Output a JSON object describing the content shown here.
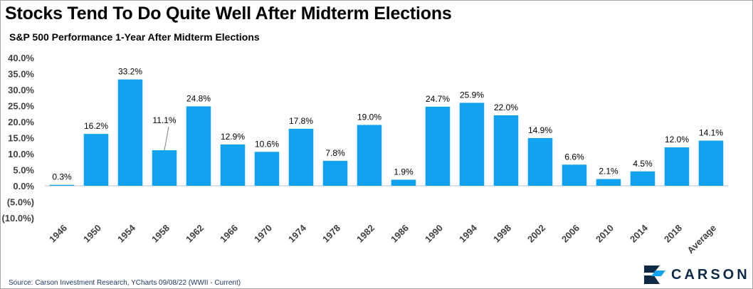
{
  "header": {
    "title": "Stocks Tend To Do Quite Well After Midterm Elections",
    "subtitle": "S&P 500 Performance 1-Year After Midterm Elections"
  },
  "footer": {
    "source": "Source: Carson Investment Research, YCharts 09/08/22 (WWII - Current)",
    "logo_text": "CARSON"
  },
  "chart_data": {
    "type": "bar",
    "title": "Stocks Tend To Do Quite Well After Midterm Elections",
    "subtitle": "S&P 500 Performance 1-Year After Midterm Elections",
    "categories": [
      "1946",
      "1950",
      "1954",
      "1958",
      "1962",
      "1966",
      "1970",
      "1974",
      "1978",
      "1982",
      "1986",
      "1990",
      "1994",
      "1998",
      "2002",
      "2006",
      "2010",
      "2014",
      "2018",
      "Average"
    ],
    "values": [
      0.3,
      16.2,
      33.2,
      11.1,
      24.8,
      12.9,
      10.6,
      17.8,
      7.8,
      19.0,
      1.9,
      24.7,
      25.9,
      22.0,
      14.9,
      6.6,
      2.1,
      4.5,
      12.0,
      14.1
    ],
    "data_labels": [
      "0.3%",
      "16.2%",
      "33.2%",
      "11.1%",
      "24.8%",
      "12.9%",
      "10.6%",
      "17.8%",
      "7.8%",
      "19.0%",
      "1.9%",
      "24.7%",
      "25.9%",
      "22.0%",
      "14.9%",
      "6.6%",
      "2.1%",
      "4.5%",
      "12.0%",
      "14.1%"
    ],
    "y_ticks": [
      40,
      35,
      30,
      25,
      20,
      15,
      10,
      5,
      0,
      -5,
      -10
    ],
    "y_tick_labels": [
      "40.0%",
      "35.0%",
      "30.0%",
      "25.0%",
      "20.0%",
      "15.0%",
      "10.0%",
      "5.0%",
      "0.0%",
      "(5.0%)",
      "(10.0%)"
    ],
    "ylim": [
      -10,
      40
    ],
    "unit": "%",
    "grid": false,
    "legend": "none",
    "bar_color": "#12a3f0"
  }
}
